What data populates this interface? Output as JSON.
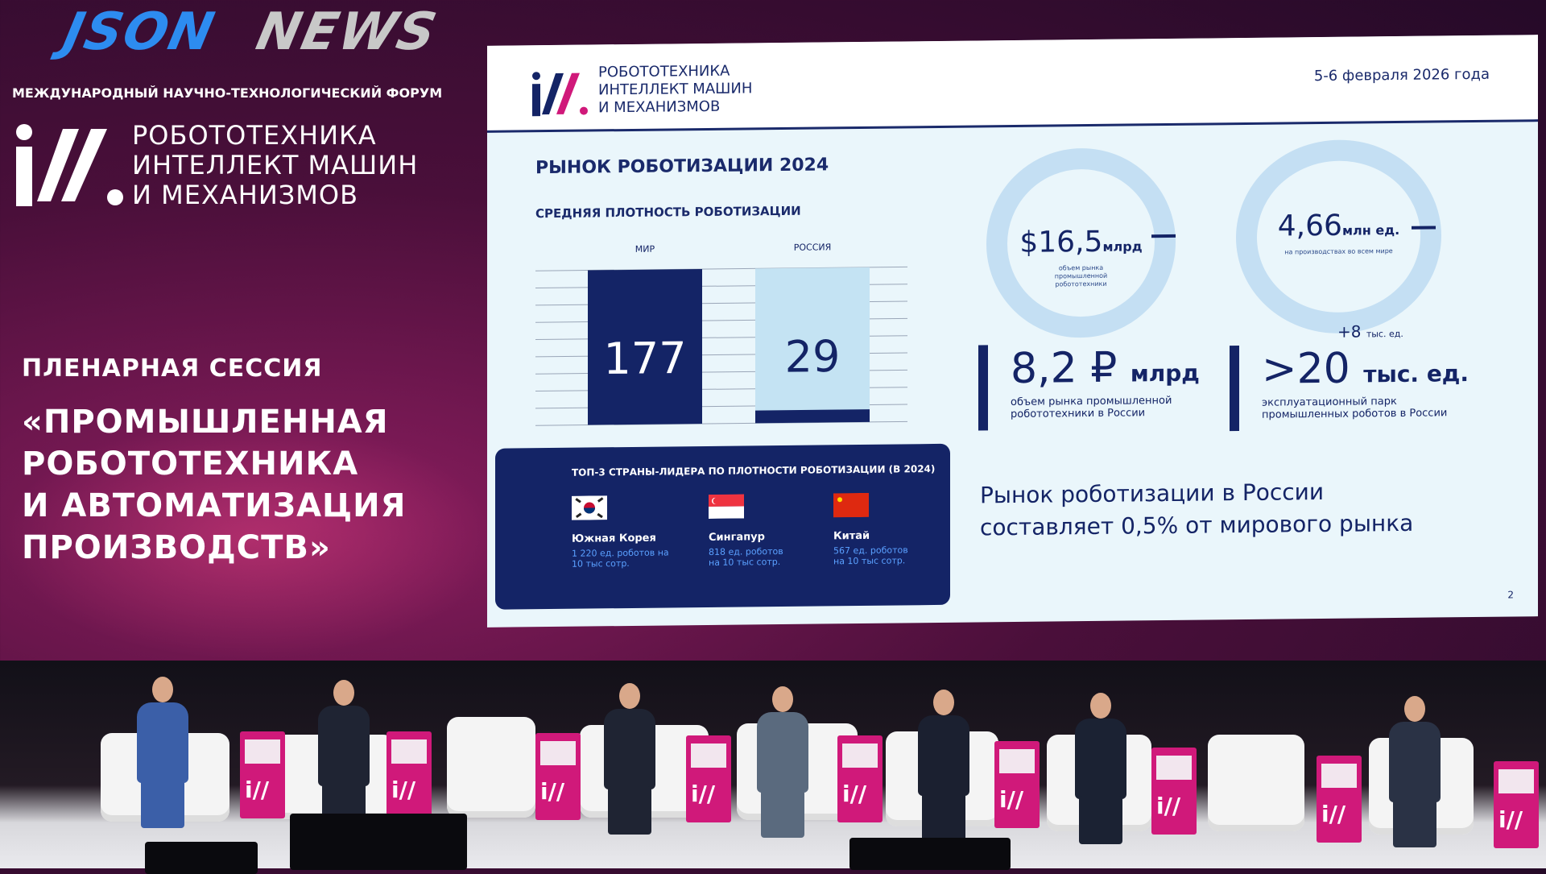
{
  "watermark": {
    "line1": "JSON",
    "line2": "NEWS"
  },
  "forum": {
    "label": "МЕЖДУНАРОДНЫЙ НАУЧНО-ТЕХНОЛОГИЧЕСКИЙ ФОРУМ",
    "title_lines": [
      "РОБОТОТЕХНИКА",
      "ИНТЕЛЛЕКТ МАШИН",
      "И МЕХАНИЗМОВ"
    ]
  },
  "session": {
    "label": "ПЛЕНАРНАЯ СЕССИЯ",
    "title_lines": [
      "«ПРОМЫШЛЕННАЯ",
      "РОБОТОТЕХНИКА",
      "И АВТОМАТИЗАЦИЯ",
      "ПРОИЗВОДСТВ»"
    ]
  },
  "slide": {
    "brand_lines": [
      "РОБОТОТЕХНИКА",
      "ИНТЕЛЛЕКТ МАШИН",
      "И МЕХАНИЗМОВ"
    ],
    "date": "5-6 февраля 2026 года",
    "title": "РЫНОК РОБОТИЗАЦИИ 2024",
    "subtitle": "СРЕДНЯЯ ПЛОТНОСТЬ РОБОТИЗАЦИИ",
    "top3": {
      "title": "ТОП-3 СТРАНЫ-ЛИДЕРА ПО ПЛОТНОСТИ РОБОТИЗАЦИИ (В 2024)",
      "countries": [
        {
          "name": "Южная Корея",
          "value_lines": [
            "1 220 ед. роботов на",
            "10 тыс сотр."
          ],
          "flag": "south-korea"
        },
        {
          "name": "Сингапур",
          "value_lines": [
            "818 ед. роботов",
            "на 10 тыс сотр."
          ],
          "flag": "singapore"
        },
        {
          "name": "Китай",
          "value_lines": [
            "567 ед. роботов",
            "на 10 тыс сотр."
          ],
          "flag": "china"
        }
      ]
    },
    "rings": [
      {
        "value": "$16,5",
        "unit": "млрд",
        "desc": "объем рынка промышленной робототехники"
      },
      {
        "value": "4,66",
        "unit": "млн ед.",
        "desc": "на производствах во всем мире"
      }
    ],
    "stats": [
      {
        "value": "8,2 ₽",
        "unit": "млрд",
        "desc_lines": [
          "объем рынка промышленной",
          "робототехники в России"
        ]
      },
      {
        "value": ">20",
        "unit": "тыс. ед.",
        "sup": "+8",
        "sup_unit": "тыс. ед.",
        "desc_lines": [
          "эксплуатационный парк",
          "промышленных роботов в России"
        ]
      }
    ],
    "conclusion_lines": [
      "Рынок роботизации в России",
      "составляет 0,5% от мирового рынка"
    ],
    "page_number": "2",
    "colors": {
      "navy": "#142466",
      "light_bar": "#c4e3f3",
      "ring": "#c4dff3",
      "accent": "#d0197a"
    }
  },
  "chart_data": {
    "type": "bar",
    "title": "СРЕДНЯЯ ПЛОТНОСТЬ РОБОТИЗАЦИИ",
    "categories": [
      "МИР",
      "РОССИЯ"
    ],
    "values": [
      177,
      29
    ],
    "grid": true
  }
}
